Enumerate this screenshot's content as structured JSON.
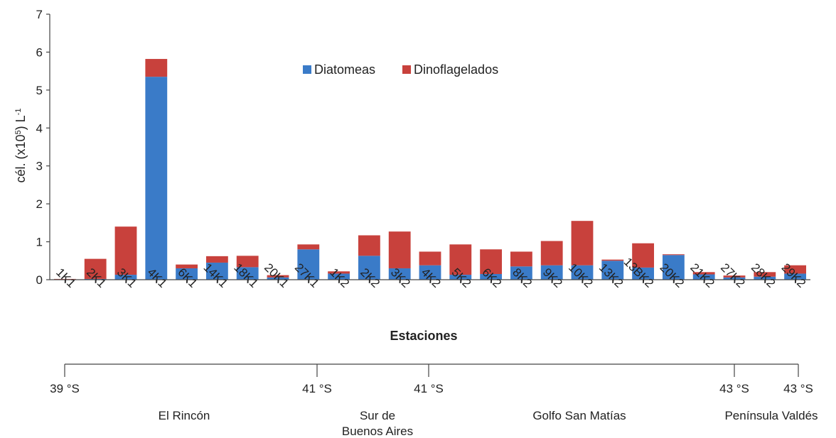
{
  "chart_data": {
    "type": "bar",
    "stacked": true,
    "categories": [
      "1K1",
      "2K1",
      "3K1",
      "4K1",
      "6K1",
      "14K1",
      "18K1",
      "20K1",
      "27K1",
      "1K2",
      "2K2",
      "3K2",
      "4K2",
      "5K2",
      "6K2",
      "8K2",
      "9K2",
      "10K2",
      "13K2",
      "13BK2",
      "20K2",
      "21K2",
      "27K2",
      "28K2",
      "29K2"
    ],
    "series": [
      {
        "name": "Diatomeas",
        "color": "#3a7bc8",
        "values": [
          0.01,
          0.02,
          0.13,
          5.35,
          0.3,
          0.45,
          0.33,
          0.06,
          0.8,
          0.16,
          0.63,
          0.3,
          0.38,
          0.13,
          0.15,
          0.35,
          0.38,
          0.38,
          0.5,
          0.32,
          0.65,
          0.14,
          0.06,
          0.08,
          0.16
        ]
      },
      {
        "name": "Dinoflagelados",
        "color": "#c8413c",
        "values": [
          0.01,
          0.53,
          1.27,
          0.47,
          0.1,
          0.17,
          0.3,
          0.06,
          0.13,
          0.06,
          0.54,
          0.97,
          0.36,
          0.8,
          0.65,
          0.39,
          0.64,
          1.17,
          0.03,
          0.64,
          0.02,
          0.06,
          0.05,
          0.12,
          0.22
        ]
      }
    ],
    "xlabel": "Estaciones",
    "ylabel": "cél. (x10",
    "ylabel_sup1": "5",
    "ylabel_mid": ") L",
    "ylabel_sup2": "-1",
    "ylim": [
      0,
      7
    ],
    "yticks": [
      "0",
      "1",
      "2",
      "3",
      "4",
      "5",
      "6",
      "7"
    ],
    "legend_position": "top-center",
    "grid": false
  },
  "geo_axis": {
    "ticks": [
      {
        "label": "39 °S",
        "station_index": 0
      },
      {
        "label": "41 °S",
        "station_index": 9
      },
      {
        "label": "41 °S",
        "station_index": 13
      },
      {
        "label": "43 °S",
        "station_index": 22
      },
      {
        "label": "43 °S",
        "station_index": 24
      }
    ],
    "regions": [
      {
        "name": "El Rincón",
        "lines": [
          "El Rincón"
        ]
      },
      {
        "name": "Sur de Buenos Aires",
        "lines": [
          "Sur de",
          "Buenos Aires"
        ]
      },
      {
        "name": "Golfo San Matías",
        "lines": [
          "Golfo San Matías"
        ]
      },
      {
        "name": "Península Valdés",
        "lines": [
          "Península Valdés"
        ]
      }
    ]
  }
}
